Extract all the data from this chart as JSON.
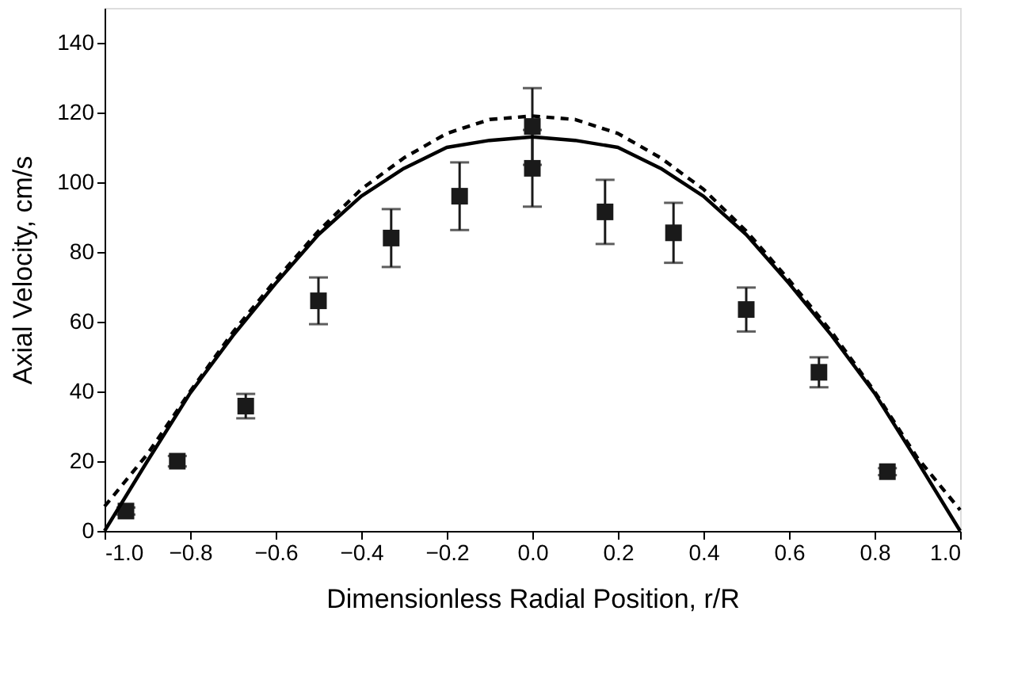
{
  "chart_data": {
    "type": "scatter",
    "xlabel": "Dimensionless Radial Position, r/R",
    "ylabel": "Axial Velocity, cm/s",
    "xlim": [
      -1,
      1
    ],
    "ylim": [
      0,
      150
    ],
    "xticks": [
      {
        "value": -1,
        "label": "-1.0"
      },
      -0.8,
      -0.6,
      -0.4,
      -0.2,
      {
        "value": 0,
        "label": "0.0"
      },
      0.2,
      0.4,
      0.6,
      0.8,
      {
        "value": 1,
        "label": "1.0"
      }
    ],
    "yticks": [
      0,
      20,
      40,
      60,
      80,
      100,
      120,
      140
    ],
    "grid": false,
    "series": [
      {
        "marker": "square",
        "color": "#1a1a1a",
        "x": [
          -0.95,
          -0.83,
          -0.67,
          -0.5,
          -0.33,
          -0.17,
          0.0,
          0.0,
          0.17,
          0.33,
          0.5,
          0.67,
          0.83
        ],
        "values": [
          5.7,
          20,
          35.8,
          66,
          84,
          96,
          116,
          104,
          91.5,
          85.5,
          63.5,
          45.5,
          17
        ],
        "errors": [
          1,
          1.5,
          3.5,
          6.7,
          8.3,
          9.7,
          11,
          11,
          9.2,
          8.6,
          6.3,
          4.3,
          1
        ]
      },
      {
        "type": "line",
        "line_style": "solid",
        "marker": "none",
        "color": "#000000",
        "x": [
          -1,
          -0.9,
          -0.8,
          -0.7,
          -0.6,
          -0.5,
          -0.4,
          -0.3,
          -0.2,
          -0.1,
          0,
          0.1,
          0.2,
          0.3,
          0.4,
          0.5,
          0.6,
          0.7,
          0.8,
          0.9,
          1
        ],
        "values": [
          0,
          20,
          39.5,
          56,
          71,
          85,
          96,
          104,
          110,
          112,
          113,
          112,
          110,
          104,
          96,
          85,
          71,
          56,
          39.5,
          20,
          0
        ]
      },
      {
        "type": "line",
        "line_style": "dashed",
        "marker": "none",
        "color": "#000000",
        "x": [
          -1,
          -0.9,
          -0.8,
          -0.7,
          -0.6,
          -0.5,
          -0.4,
          -0.3,
          -0.2,
          -0.1,
          0,
          0.1,
          0.2,
          0.3,
          0.4,
          0.5,
          0.6,
          0.7,
          0.8,
          0.9,
          1
        ],
        "values": [
          7,
          22,
          40,
          57,
          72,
          86,
          98,
          107,
          114,
          118,
          119,
          118,
          114,
          107,
          98,
          86,
          72,
          57,
          40,
          21,
          6
        ]
      }
    ]
  }
}
